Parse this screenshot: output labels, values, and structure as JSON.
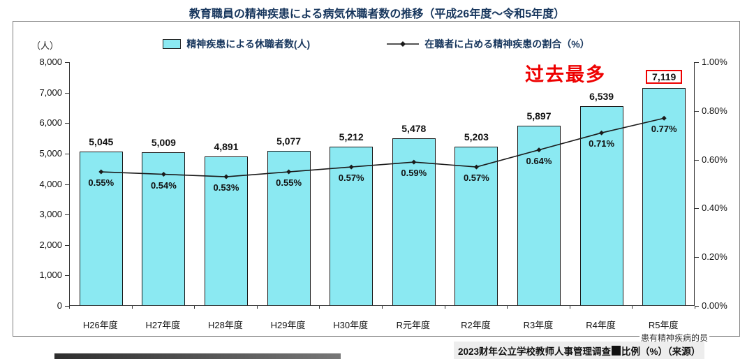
{
  "title": "教育職員の精神疾患による病気休職者数の推移（平成26年度～令和5年度）",
  "legend": {
    "bars": "精神疾患による休職者数(人)",
    "line": "在職者に占める精神疾患の割合（%）"
  },
  "axis": {
    "left_unit": "（人）",
    "left_ticks": [
      "8,000",
      "7,000",
      "6,000",
      "5,000",
      "4,000",
      "3,000",
      "2,000",
      "1,000",
      "0"
    ],
    "right_ticks": [
      "1.00%",
      "0.80%",
      "0.60%",
      "0.40%",
      "0.20%",
      "0.00%"
    ]
  },
  "annotation": "过去最多",
  "chart_data": {
    "type": "bar",
    "categories": [
      "H26年度",
      "H27年度",
      "H28年度",
      "H29年度",
      "H30年度",
      "R元年度",
      "R2年度",
      "R3年度",
      "R4年度",
      "R5年度"
    ],
    "series": [
      {
        "name": "精神疾患による休職者数(人)",
        "type": "bar",
        "values": [
          5045,
          5009,
          4891,
          5077,
          5212,
          5478,
          5203,
          5897,
          6539,
          7119
        ]
      },
      {
        "name": "在職者に占める精神疾患の割合（%）",
        "type": "line",
        "values": [
          0.55,
          0.54,
          0.53,
          0.55,
          0.57,
          0.59,
          0.57,
          0.64,
          0.71,
          0.77
        ]
      }
    ],
    "bar_labels": [
      "5,045",
      "5,009",
      "4,891",
      "5,077",
      "5,212",
      "5,478",
      "5,203",
      "5,897",
      "6,539",
      "7,119"
    ],
    "line_labels": [
      "0.55%",
      "0.54%",
      "0.53%",
      "0.55%",
      "0.57%",
      "0.59%",
      "0.57%",
      "0.64%",
      "0.71%",
      "0.77%"
    ],
    "title": "教育職員の精神疾患による病気休職者数の推移（平成26年度～令和5年度）",
    "xlabel": "",
    "ylabel_left": "（人）",
    "ylabel_right": "%",
    "ylim_left": [
      0,
      8000
    ],
    "ylim_right": [
      0,
      1.0
    ],
    "grid": false,
    "legend_position": "top",
    "highlight_index": 9
  },
  "footer": {
    "overlay_right": "患有精神疾病的员",
    "caption_part1": "2023财年公立学校教师人事管理调查",
    "caption_part2": "比例（%）（来源）"
  },
  "colors": {
    "bar_fill": "#8BE9F2",
    "bar_border": "#1a1a1a",
    "line": "#1a1a1a",
    "title": "#17365D",
    "highlight": "#ee0000"
  }
}
